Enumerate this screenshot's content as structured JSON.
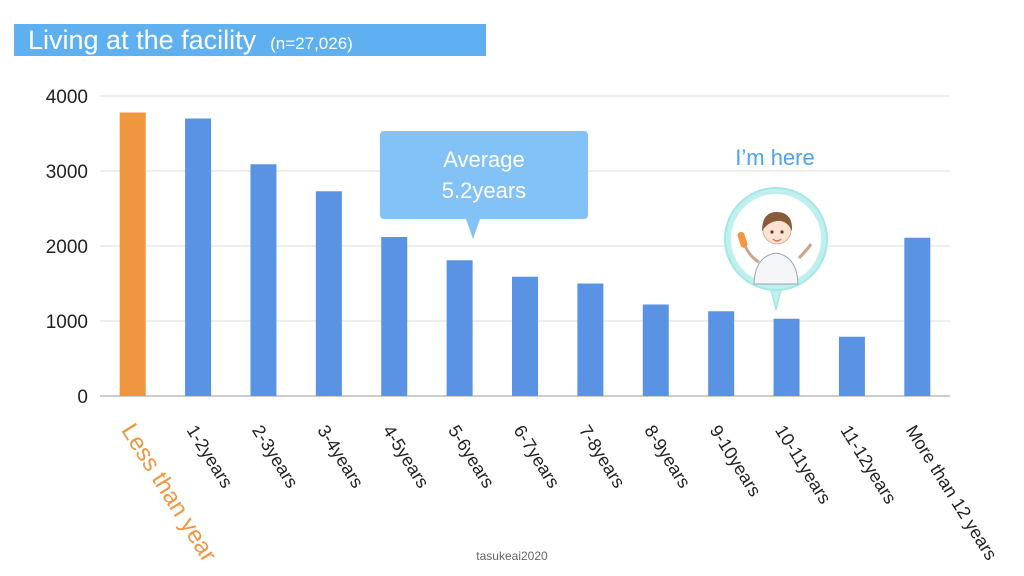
{
  "header": {
    "title": "Living at the facility",
    "sample": "(n=27,026)"
  },
  "callouts": {
    "average_line1": "Average",
    "average_line2": "5.2years",
    "here_label": "I’m here"
  },
  "watermark": "tasukeai2020",
  "colors": {
    "title_banner": "#5fb0f0",
    "bar": "#5b93e4",
    "highlight_bar": "#f0963e",
    "callout": "#82c2f7",
    "here_text": "#4da3ec",
    "bubble": "#bff0ef"
  },
  "chart_data": {
    "type": "bar",
    "title": "Living at the facility",
    "categories": [
      "Less than year",
      "1-2years",
      "2-3years",
      "3-4years",
      "4-5years",
      "5-6years",
      "6-7years",
      "7-8years",
      "8-9years",
      "9-10years",
      "10-11years",
      "11-12years",
      "More than 12 years"
    ],
    "values": [
      3780,
      3700,
      3090,
      2730,
      2120,
      1810,
      1590,
      1500,
      1220,
      1130,
      1030,
      790,
      2110
    ],
    "highlight_index": 0,
    "yticks": [
      "0",
      "1000",
      "2000",
      "3000",
      "4000"
    ],
    "ylim": [
      0,
      4000
    ],
    "xlabel": "",
    "ylabel": "",
    "grid": true,
    "legend": "none"
  }
}
